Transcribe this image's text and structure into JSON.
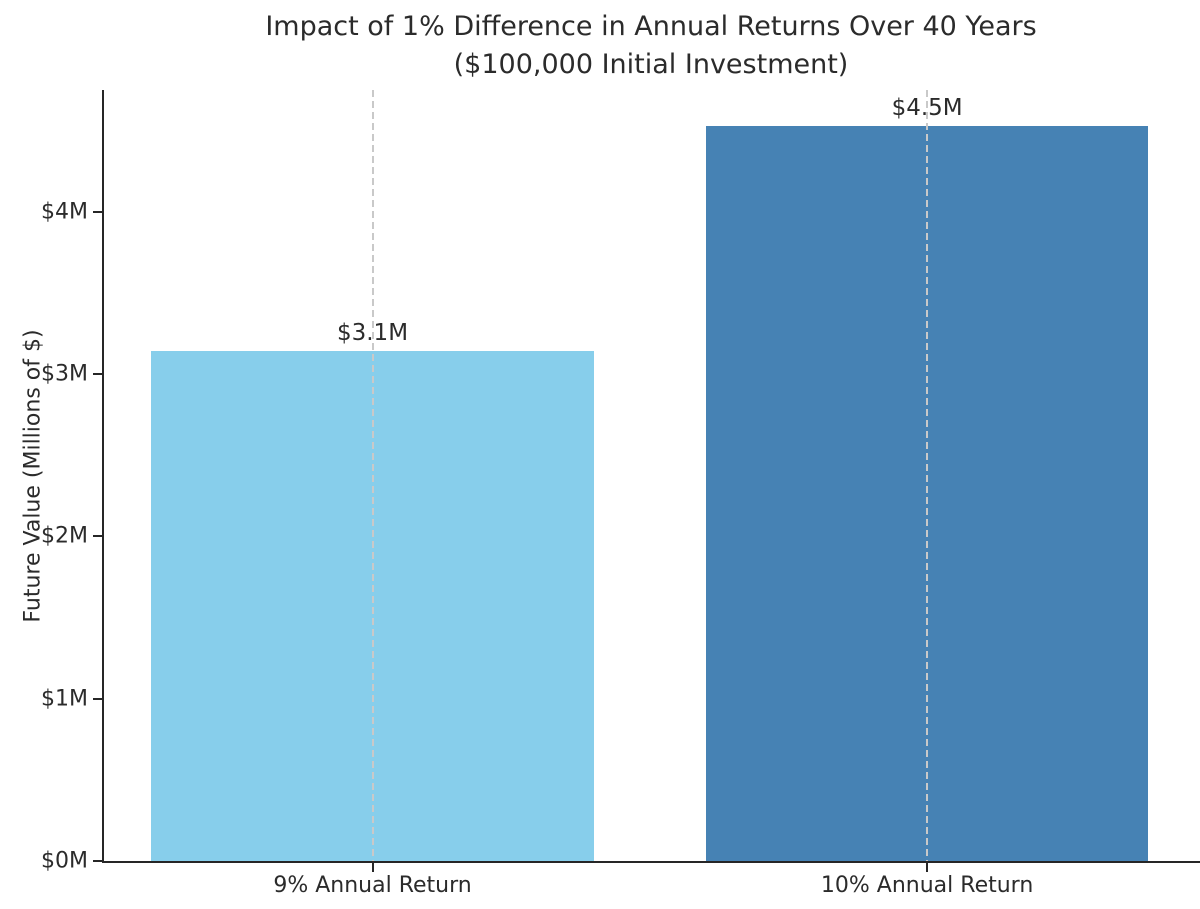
{
  "chart_data": {
    "type": "bar",
    "title": "Impact of 1% Difference in Annual Returns Over 40 Years",
    "subtitle": "($100,000 Initial Investment)",
    "categories": [
      "9% Annual Return",
      "10% Annual Return"
    ],
    "values": [
      3.14,
      4.53
    ],
    "values_unit": "millions of $",
    "value_labels": [
      "$3.1M",
      "$4.5M"
    ],
    "bar_colors": [
      "#87CEEB",
      "#4682B4"
    ],
    "bar_centers_frac": [
      0.245,
      0.751
    ],
    "bar_width_frac": 0.4034,
    "ylabel": "Future Value (Millions of $)",
    "xlabel": "",
    "ylim": [
      0,
      4.75
    ],
    "yticks": [
      {
        "value": 0,
        "label": "$0M"
      },
      {
        "value": 1,
        "label": "$1M"
      },
      {
        "value": 2,
        "label": "$2M"
      },
      {
        "value": 3,
        "label": "$3M"
      },
      {
        "value": 4,
        "label": "$4M"
      }
    ],
    "grid": {
      "axis": "x",
      "style": "dashed",
      "color": "#c9c9c9",
      "drawn_above_bars": true
    },
    "legend": "none",
    "axis_color": "#262626",
    "text_color": "#2b2b2b"
  }
}
